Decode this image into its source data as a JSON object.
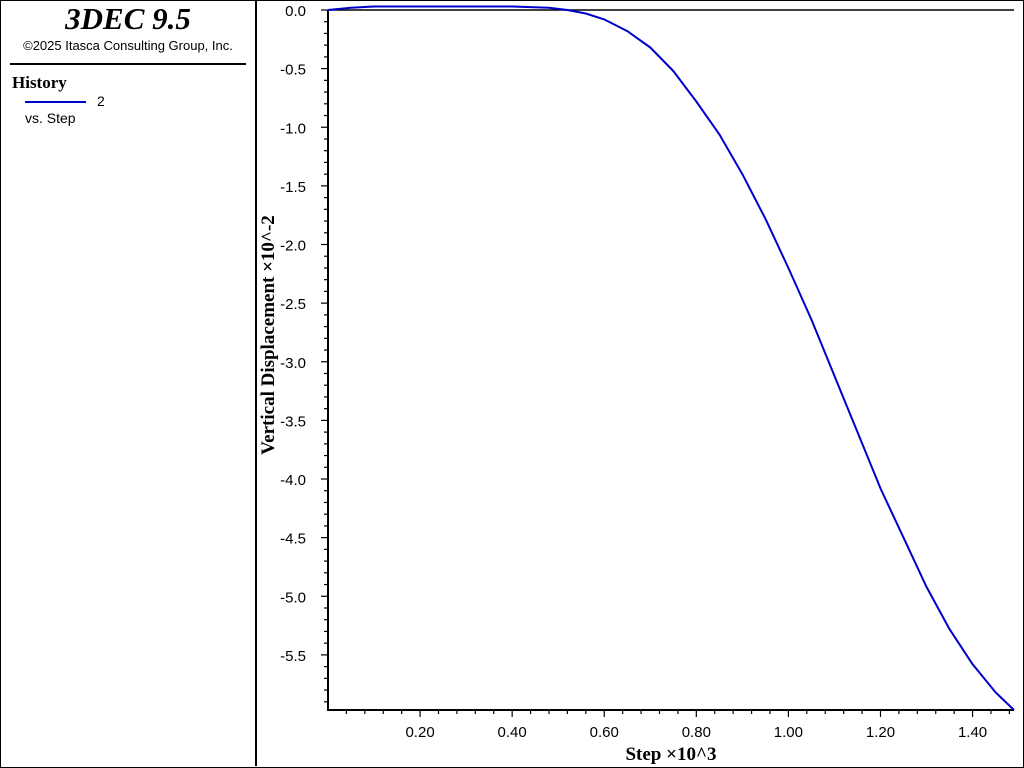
{
  "header": {
    "app_title": "3DEC 9.5",
    "copyright": "©2025 Itasca Consulting Group, Inc."
  },
  "legend": {
    "heading": "History",
    "series_label": "2",
    "vs_label": "vs. Step"
  },
  "colors": {
    "series": "#0000cc",
    "axis": "#000000",
    "zero_line": "#000000"
  },
  "chart_data": {
    "type": "line",
    "title": "",
    "xlabel": "Step ×10^3",
    "ylabel": "Vertical Displacement ×10^-2",
    "xlim": [
      0.0,
      1.49
    ],
    "ylim": [
      -5.97,
      0.0
    ],
    "x_ticks": [
      0.2,
      0.4,
      0.6,
      0.8,
      1.0,
      1.2,
      1.4
    ],
    "x_tick_labels": [
      "0.20",
      "0.40",
      "0.60",
      "0.80",
      "1.00",
      "1.20",
      "1.40"
    ],
    "y_ticks": [
      0.0,
      -0.5,
      -1.0,
      -1.5,
      -2.0,
      -2.5,
      -3.0,
      -3.5,
      -4.0,
      -4.5,
      -5.0,
      -5.5
    ],
    "y_tick_labels": [
      "0.0",
      "-0.5",
      "-1.0",
      "-1.5",
      "-2.0",
      "-2.5",
      "-3.0",
      "-3.5",
      "-4.0",
      "-4.5",
      "-5.0",
      "-5.5"
    ],
    "zero_line": true,
    "grid": false,
    "legend_position": "left-panel",
    "series": [
      {
        "name": "2",
        "x": [
          0.0,
          0.05,
          0.1,
          0.2,
          0.3,
          0.4,
          0.48,
          0.52,
          0.56,
          0.6,
          0.65,
          0.7,
          0.75,
          0.8,
          0.85,
          0.9,
          0.95,
          1.0,
          1.05,
          1.1,
          1.15,
          1.2,
          1.25,
          1.3,
          1.35,
          1.4,
          1.45,
          1.49
        ],
        "y": [
          0.0,
          0.02,
          0.03,
          0.03,
          0.03,
          0.03,
          0.02,
          0.0,
          -0.03,
          -0.08,
          -0.18,
          -0.32,
          -0.52,
          -0.78,
          -1.06,
          -1.4,
          -1.78,
          -2.2,
          -2.64,
          -3.12,
          -3.6,
          -4.08,
          -4.5,
          -4.92,
          -5.28,
          -5.58,
          -5.82,
          -5.97
        ]
      }
    ]
  }
}
